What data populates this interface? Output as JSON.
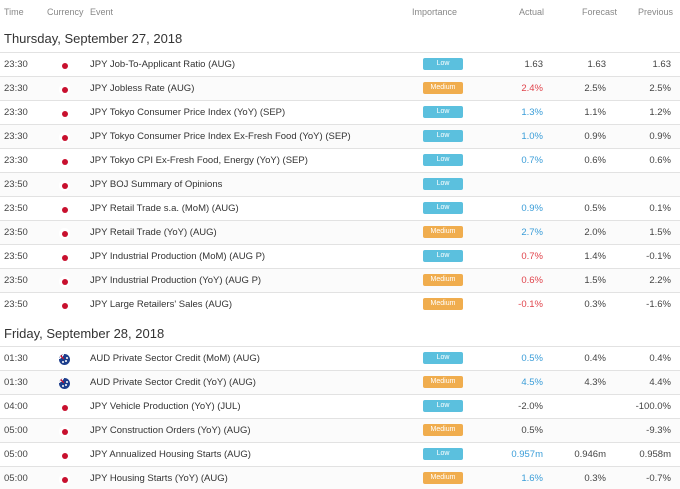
{
  "header": {
    "time": "Time",
    "currency": "Currency",
    "event": "Event",
    "importance": "Importance",
    "actual": "Actual",
    "forecast": "Forecast",
    "previous": "Previous"
  },
  "days": [
    {
      "title": "Thursday, September 27, 2018",
      "rows": [
        {
          "time": "23:30",
          "flag": "jpy",
          "event": "JPY Job-To-Applicant Ratio (AUG)",
          "importance": "Low",
          "actual": "1.63",
          "actual_color": "black",
          "forecast": "1.63",
          "previous": "1.63"
        },
        {
          "time": "23:30",
          "flag": "jpy",
          "event": "JPY Jobless Rate (AUG)",
          "importance": "Medium",
          "actual": "2.4%",
          "actual_color": "red",
          "forecast": "2.5%",
          "previous": "2.5%"
        },
        {
          "time": "23:30",
          "flag": "jpy",
          "event": "JPY Tokyo Consumer Price Index (YoY) (SEP)",
          "importance": "Low",
          "actual": "1.3%",
          "actual_color": "blue",
          "forecast": "1.1%",
          "previous": "1.2%"
        },
        {
          "time": "23:30",
          "flag": "jpy",
          "event": "JPY Tokyo Consumer Price Index Ex-Fresh Food (YoY) (SEP)",
          "importance": "Low",
          "actual": "1.0%",
          "actual_color": "blue",
          "forecast": "0.9%",
          "previous": "0.9%"
        },
        {
          "time": "23:30",
          "flag": "jpy",
          "event": "JPY Tokyo CPI Ex-Fresh Food, Energy (YoY) (SEP)",
          "importance": "Low",
          "actual": "0.7%",
          "actual_color": "blue",
          "forecast": "0.6%",
          "previous": "0.6%"
        },
        {
          "time": "23:50",
          "flag": "jpy",
          "event": "JPY BOJ Summary of Opinions",
          "importance": "Low",
          "actual": "",
          "actual_color": "black",
          "forecast": "",
          "previous": ""
        },
        {
          "time": "23:50",
          "flag": "jpy",
          "event": "JPY Retail Trade s.a. (MoM) (AUG)",
          "importance": "Low",
          "actual": "0.9%",
          "actual_color": "blue",
          "forecast": "0.5%",
          "previous": "0.1%"
        },
        {
          "time": "23:50",
          "flag": "jpy",
          "event": "JPY Retail Trade (YoY) (AUG)",
          "importance": "Medium",
          "actual": "2.7%",
          "actual_color": "blue",
          "forecast": "2.0%",
          "previous": "1.5%"
        },
        {
          "time": "23:50",
          "flag": "jpy",
          "event": "JPY Industrial Production (MoM) (AUG P)",
          "importance": "Low",
          "actual": "0.7%",
          "actual_color": "red",
          "forecast": "1.4%",
          "previous": "-0.1%"
        },
        {
          "time": "23:50",
          "flag": "jpy",
          "event": "JPY Industrial Production (YoY) (AUG P)",
          "importance": "Medium",
          "actual": "0.6%",
          "actual_color": "red",
          "forecast": "1.5%",
          "previous": "2.2%"
        },
        {
          "time": "23:50",
          "flag": "jpy",
          "event": "JPY Large Retailers' Sales (AUG)",
          "importance": "Medium",
          "actual": "-0.1%",
          "actual_color": "red",
          "forecast": "0.3%",
          "previous": "-1.6%"
        }
      ]
    },
    {
      "title": "Friday, September 28, 2018",
      "rows": [
        {
          "time": "01:30",
          "flag": "aud",
          "event": "AUD Private Sector Credit (MoM) (AUG)",
          "importance": "Low",
          "actual": "0.5%",
          "actual_color": "blue",
          "forecast": "0.4%",
          "previous": "0.4%"
        },
        {
          "time": "01:30",
          "flag": "aud",
          "event": "AUD Private Sector Credit (YoY) (AUG)",
          "importance": "Medium",
          "actual": "4.5%",
          "actual_color": "blue",
          "forecast": "4.3%",
          "previous": "4.4%"
        },
        {
          "time": "04:00",
          "flag": "jpy",
          "event": "JPY Vehicle Production (YoY) (JUL)",
          "importance": "Low",
          "actual": "-2.0%",
          "actual_color": "black",
          "forecast": "",
          "previous": "-100.0%"
        },
        {
          "time": "05:00",
          "flag": "jpy",
          "event": "JPY Construction Orders (YoY) (AUG)",
          "importance": "Medium",
          "actual": "0.5%",
          "actual_color": "black",
          "forecast": "",
          "previous": "-9.3%"
        },
        {
          "time": "05:00",
          "flag": "jpy",
          "event": "JPY Annualized Housing Starts (AUG)",
          "importance": "Low",
          "actual": "0.957m",
          "actual_color": "blue",
          "forecast": "0.946m",
          "previous": "0.958m"
        },
        {
          "time": "05:00",
          "flag": "jpy",
          "event": "JPY Housing Starts (YoY) (AUG)",
          "importance": "Medium",
          "actual": "1.6%",
          "actual_color": "blue",
          "forecast": "0.3%",
          "previous": "-0.7%"
        }
      ]
    }
  ],
  "colors": {
    "low": "#5bc0de",
    "medium": "#f0ad4e",
    "better": "#3a9dd8",
    "worse": "#e0434b"
  }
}
